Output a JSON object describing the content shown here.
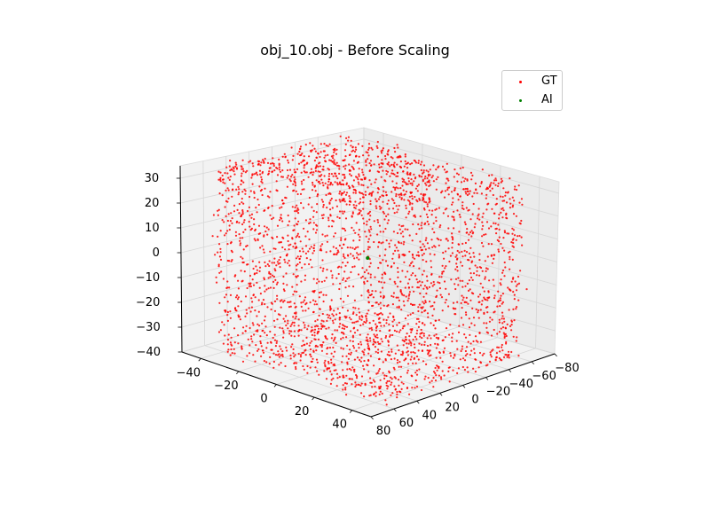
{
  "chart_data": {
    "type": "scatter",
    "projection": "3d",
    "title": "obj_10.obj - Before Scaling",
    "xlabel": "",
    "ylabel": "",
    "zlabel": "",
    "x_ticks": [
      "−40",
      "−20",
      "0",
      "20",
      "40"
    ],
    "y_ticks": [
      "80",
      "60",
      "40",
      "20",
      "0",
      "−20",
      "−40",
      "−60",
      "−80"
    ],
    "z_ticks": [
      "30",
      "20",
      "10",
      "0",
      "−10",
      "−20",
      "−30",
      "−40"
    ],
    "xlim": [
      -50,
      50
    ],
    "ylim": [
      -80,
      80
    ],
    "zlim": [
      -40,
      35
    ],
    "grid": true,
    "legend_position": "top-right",
    "series": [
      {
        "name": "GT",
        "color": "#ff0000",
        "shape": "closed point cloud of an object surface (cube-like body with rounded bulges on four sides)",
        "extent": {
          "x": [
            -45,
            45
          ],
          "y": [
            -80,
            80
          ],
          "z": [
            -40,
            35
          ]
        },
        "point_count_approx": 3000
      },
      {
        "name": "AI",
        "color": "#008000",
        "points": [
          [
            0,
            0,
            0
          ]
        ]
      }
    ]
  }
}
